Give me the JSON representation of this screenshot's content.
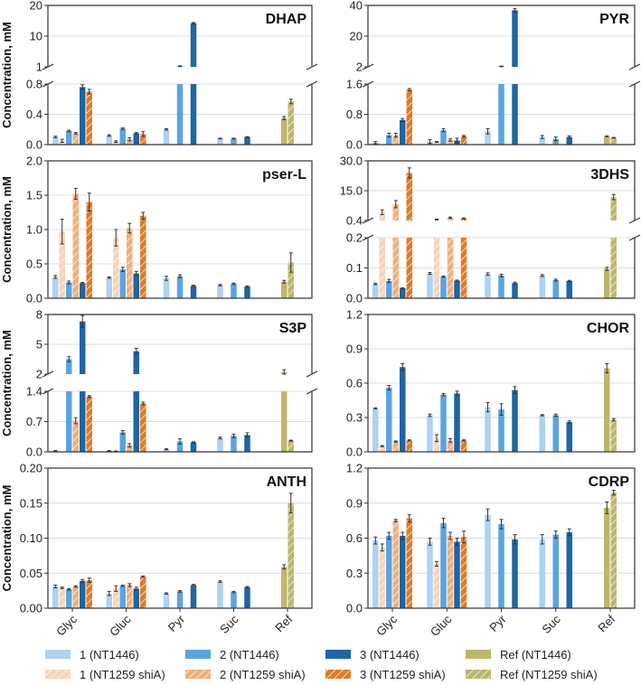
{
  "chart_data": {
    "type": "bar",
    "categories": [
      "Glyc",
      "Gluc",
      "Pyr",
      "Suc",
      "Ref"
    ],
    "ylabel": "Concentration, mM",
    "series": [
      {
        "key": "s1",
        "name": "1 (NT1446)",
        "color": "#aed2f1",
        "hatched": false
      },
      {
        "key": "s1s",
        "name": "1 (NT1259 shiA)",
        "color": "#f6d4b8",
        "hatched": true
      },
      {
        "key": "s2",
        "name": "2 (NT1446)",
        "color": "#5aa4e2",
        "hatched": false
      },
      {
        "key": "s2s",
        "name": "2 (NT1259 shiA)",
        "color": "#eeb07c",
        "hatched": true
      },
      {
        "key": "s3",
        "name": "3 (NT1446)",
        "color": "#1f65a5",
        "hatched": false
      },
      {
        "key": "s3s",
        "name": "3 (NT1259 shiA)",
        "color": "#e07b26",
        "hatched": true
      },
      {
        "key": "ref",
        "name": "Ref (NT1446)",
        "color": "#bdb76b",
        "hatched": false
      },
      {
        "key": "refs",
        "name": "Ref (NT1259 shiA)",
        "color": "#bdb76b",
        "hatched": true
      }
    ],
    "group_series": {
      "Glyc": [
        "s1",
        "s1s",
        "s2",
        "s2s",
        "s3",
        "s3s"
      ],
      "Gluc": [
        "s1",
        "s1s",
        "s2",
        "s2s",
        "s3",
        "s3s"
      ],
      "Pyr": [
        "s1",
        "s2",
        "s3"
      ],
      "Suc": [
        "s1",
        "s2",
        "s3"
      ],
      "Ref": [
        "ref",
        "refs"
      ]
    },
    "panels": [
      {
        "title": "DHAP",
        "broken": true,
        "lower": {
          "ylim": [
            0,
            0.8
          ],
          "ticks": [
            "0.0",
            "0.4",
            "0.8"
          ]
        },
        "upper": {
          "ylim": [
            1,
            20
          ],
          "ticks": [
            "1",
            "10",
            "20"
          ]
        },
        "values": {
          "Glyc": [
            0.1,
            0.05,
            0.18,
            0.15,
            0.76,
            0.7
          ],
          "Gluc": [
            0.12,
            0.04,
            0.21,
            0.07,
            0.15,
            0.14
          ],
          "Pyr": [
            0.2,
            1.2,
            14.5
          ],
          "Suc": [
            0.08,
            0.08,
            0.1
          ],
          "Ref": [
            0.35,
            0.57
          ]
        },
        "errors": {
          "Glyc": [
            0.01,
            0.02,
            0.01,
            0.01,
            0.03,
            0.03
          ],
          "Gluc": [
            0.01,
            0.01,
            0.01,
            0.02,
            0.01,
            0.03
          ],
          "Pyr": [
            0.01,
            0.1,
            0.2
          ],
          "Suc": [
            0.005,
            0.005,
            0.005
          ],
          "Ref": [
            0.02,
            0.03
          ]
        }
      },
      {
        "title": "PYR",
        "broken": true,
        "lower": {
          "ylim": [
            0,
            1.6
          ],
          "ticks": [
            "0.0",
            "0.8",
            "1.6"
          ]
        },
        "upper": {
          "ylim": [
            2,
            40
          ],
          "ticks": [
            "2",
            "20",
            "40"
          ]
        },
        "values": {
          "Glyc": [
            0.05,
            0.0,
            0.25,
            0.25,
            0.65,
            1.45
          ],
          "Gluc": [
            0.08,
            0.07,
            0.38,
            0.12,
            0.11,
            0.22
          ],
          "Pyr": [
            0.35,
            2.3,
            37
          ],
          "Suc": [
            0.2,
            0.15,
            0.2
          ],
          "Ref": [
            0.22,
            0.18
          ]
        },
        "errors": {
          "Glyc": [
            0.03,
            0,
            0.05,
            0.05,
            0.04,
            0.03
          ],
          "Gluc": [
            0.05,
            0.01,
            0.04,
            0.03,
            0.06,
            0.02
          ],
          "Pyr": [
            0.07,
            0.2,
            1.0
          ],
          "Suc": [
            0.04,
            0.05,
            0.03
          ],
          "Ref": [
            0.01,
            0.01
          ]
        }
      },
      {
        "title": "pser-L",
        "broken": false,
        "lower": {
          "ylim": [
            0,
            2.0
          ],
          "ticks": [
            "0.0",
            "0.5",
            "1.0",
            "1.5",
            "2.0"
          ]
        },
        "values": {
          "Glyc": [
            0.31,
            0.97,
            0.23,
            1.52,
            0.22,
            1.4
          ],
          "Gluc": [
            0.3,
            0.88,
            0.42,
            1.02,
            0.36,
            1.2
          ],
          "Pyr": [
            0.29,
            0.32,
            0.18
          ],
          "Suc": [
            0.19,
            0.21,
            0.17
          ],
          "Ref": [
            0.24,
            0.52
          ]
        },
        "errors": {
          "Glyc": [
            0.02,
            0.18,
            0.02,
            0.08,
            0.01,
            0.13
          ],
          "Gluc": [
            0.01,
            0.12,
            0.03,
            0.07,
            0.03,
            0.05
          ],
          "Pyr": [
            0.03,
            0.02,
            0.01
          ],
          "Suc": [
            0.01,
            0.01,
            0.01
          ],
          "Ref": [
            0.02,
            0.14
          ]
        }
      },
      {
        "title": "3DHS",
        "broken": true,
        "lower": {
          "ylim": [
            0,
            0.2
          ],
          "ticks": [
            "0.0",
            "0.1",
            "0.2"
          ]
        },
        "upper": {
          "ylim": [
            0.4,
            30
          ],
          "ticks": [
            "0.4",
            "15.0",
            "30.0"
          ]
        },
        "values": {
          "Glyc": [
            0.047,
            4.5,
            0.057,
            8.5,
            0.033,
            24
          ],
          "Gluc": [
            0.082,
            0.9,
            0.071,
            1.8,
            0.058,
            1.4
          ],
          "Pyr": [
            0.08,
            0.075,
            0.05
          ],
          "Suc": [
            0.075,
            0.06,
            0.057
          ],
          "Ref": [
            0.097,
            12
          ]
        },
        "errors": {
          "Glyc": [
            0.002,
            1.2,
            0.005,
            1.8,
            0.002,
            2.5
          ],
          "Gluc": [
            0.003,
            0.2,
            0.002,
            0.3,
            0.002,
            0.3
          ],
          "Pyr": [
            0.004,
            0.004,
            0.003
          ],
          "Suc": [
            0.003,
            0.003,
            0.002
          ],
          "Ref": [
            0.005,
            1.3
          ]
        }
      },
      {
        "title": "S3P",
        "broken": true,
        "lower": {
          "ylim": [
            0,
            1.4
          ],
          "ticks": [
            "0.0",
            "0.7",
            "1.4"
          ]
        },
        "upper": {
          "ylim": [
            2,
            8
          ],
          "ticks": [
            "2",
            "5",
            "8"
          ]
        },
        "values": {
          "Glyc": [
            0.02,
            0.0,
            3.5,
            0.72,
            7.3,
            1.28
          ],
          "Gluc": [
            0.02,
            0.01,
            0.45,
            0.15,
            4.3,
            1.12
          ],
          "Pyr": [
            0.06,
            0.24,
            0.22
          ],
          "Suc": [
            0.32,
            0.37,
            0.39
          ],
          "Ref": [
            2.2,
            0.26
          ]
        },
        "errors": {
          "Glyc": [
            0.01,
            0,
            0.25,
            0.07,
            0.6,
            0.02
          ],
          "Gluc": [
            0.01,
            0.01,
            0.04,
            0.04,
            0.3,
            0.03
          ],
          "Pyr": [
            0.01,
            0.06,
            0.01
          ],
          "Suc": [
            0.02,
            0.04,
            0.05
          ],
          "Ref": [
            0.25,
            0.01
          ]
        }
      },
      {
        "title": "CHOR",
        "broken": false,
        "lower": {
          "ylim": [
            0,
            1.2
          ],
          "ticks": [
            "0.0",
            "0.3",
            "0.6",
            "0.9",
            "1.2"
          ]
        },
        "values": {
          "Glyc": [
            0.38,
            0.05,
            0.56,
            0.09,
            0.74,
            0.1
          ],
          "Gluc": [
            0.32,
            0.12,
            0.5,
            0.1,
            0.51,
            0.1
          ],
          "Pyr": [
            0.39,
            0.37,
            0.54
          ],
          "Suc": [
            0.32,
            0.32,
            0.26
          ],
          "Ref": [
            0.73,
            0.28
          ]
        },
        "errors": {
          "Glyc": [
            0.005,
            0.005,
            0.02,
            0.005,
            0.03,
            0.005
          ],
          "Gluc": [
            0.01,
            0.03,
            0.01,
            0.015,
            0.02,
            0.005
          ],
          "Pyr": [
            0.04,
            0.05,
            0.03
          ],
          "Suc": [
            0.005,
            0.01,
            0.01
          ],
          "Ref": [
            0.04,
            0.01
          ]
        }
      },
      {
        "title": "ANTH",
        "broken": false,
        "lower": {
          "ylim": [
            0,
            0.2
          ],
          "ticks": [
            "0.00",
            "0.05",
            "0.10",
            "0.15",
            "0.20"
          ]
        },
        "values": {
          "Glyc": [
            0.031,
            0.029,
            0.027,
            0.031,
            0.039,
            0.04
          ],
          "Gluc": [
            0.021,
            0.028,
            0.032,
            0.033,
            0.028,
            0.045
          ],
          "Pyr": [
            0.021,
            0.024,
            0.033
          ],
          "Suc": [
            0.038,
            0.023,
            0.03
          ],
          "Ref": [
            0.059,
            0.15
          ]
        },
        "errors": {
          "Glyc": [
            0.002,
            0.001,
            0.001,
            0.001,
            0.002,
            0.003
          ],
          "Gluc": [
            0.003,
            0.004,
            0.001,
            0.002,
            0.002,
            0.001
          ],
          "Pyr": [
            0.001,
            0.001,
            0.001
          ],
          "Suc": [
            0.001,
            0.001,
            0.001
          ],
          "Ref": [
            0.003,
            0.014
          ]
        }
      },
      {
        "title": "CDRP",
        "broken": false,
        "lower": {
          "ylim": [
            0,
            1.2
          ],
          "ticks": [
            "0.0",
            "0.3",
            "0.6",
            "0.9",
            "1.2"
          ]
        },
        "values": {
          "Glyc": [
            0.58,
            0.52,
            0.62,
            0.75,
            0.62,
            0.77
          ],
          "Gluc": [
            0.57,
            0.38,
            0.73,
            0.62,
            0.57,
            0.61
          ],
          "Pyr": [
            0.8,
            0.72,
            0.59
          ],
          "Suc": [
            0.59,
            0.63,
            0.65
          ],
          "Ref": [
            0.86,
            0.99
          ]
        },
        "errors": {
          "Glyc": [
            0.03,
            0.03,
            0.03,
            0.01,
            0.03,
            0.03
          ],
          "Gluc": [
            0.03,
            0.02,
            0.04,
            0.03,
            0.03,
            0.05
          ],
          "Pyr": [
            0.05,
            0.04,
            0.04
          ],
          "Suc": [
            0.04,
            0.03,
            0.03
          ],
          "Ref": [
            0.05,
            0.02
          ]
        }
      }
    ],
    "legend": {
      "placement": "bottom"
    }
  }
}
